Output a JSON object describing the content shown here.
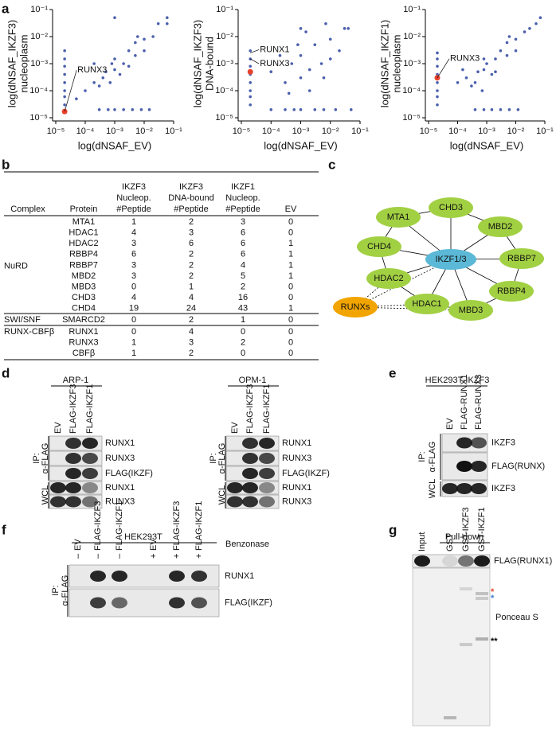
{
  "panel_labels": [
    "a",
    "b",
    "c",
    "d",
    "e",
    "f",
    "g"
  ],
  "chart_data": [
    {
      "type": "scatter",
      "xlabel": "log(dNSAF_EV)",
      "ylabel": [
        "log(dNSAF_IKZF3)",
        "nucleoplasm"
      ],
      "xscale": "log",
      "yscale": "log",
      "xlim": [
        1e-05,
        0.1
      ],
      "ylim": [
        1e-05,
        0.1
      ],
      "xticks": [
        {
          "value": 1e-05,
          "label": "10⁻⁵"
        },
        {
          "value": 0.0001,
          "label": "10⁻⁴"
        },
        {
          "value": 0.001,
          "label": "10⁻³"
        },
        {
          "value": 0.01,
          "label": "10⁻²"
        },
        {
          "value": 0.1,
          "label": "10⁻¹"
        }
      ],
      "yticks": [
        {
          "value": 1e-05,
          "label": "10⁻⁵"
        },
        {
          "value": 0.0001,
          "label": "10⁻⁴"
        },
        {
          "value": 0.001,
          "label": "10⁻³"
        },
        {
          "value": 0.01,
          "label": "10⁻²"
        },
        {
          "value": 0.1,
          "label": "10⁻¹"
        }
      ],
      "color": "#4a5fad",
      "x": [
        2e-05,
        2e-05,
        2e-05,
        2e-05,
        2e-05,
        2e-05,
        2e-05,
        2e-05,
        0.0003,
        0.0006,
        0.001,
        0.002,
        0.004,
        0.008,
        0.015,
        0.0001,
        0.0002,
        0.0003,
        0.0005,
        0.001,
        0.001,
        0.002,
        0.003,
        0.005,
        0.005,
        0.01,
        0.01,
        0.02,
        0.03,
        0.06,
        0.06,
        0.0002,
        0.0004,
        0.0007,
        0.0015,
        0.0008,
        0.006,
        0.001,
        5e-05,
        0.003
      ],
      "y": [
        3e-05,
        6e-05,
        0.0001,
        0.0002,
        0.0004,
        0.0008,
        0.0015,
        0.003,
        2e-05,
        2e-05,
        2e-05,
        2e-05,
        2e-05,
        2e-05,
        2e-05,
        0.0001,
        0.0002,
        0.00015,
        0.0005,
        0.0006,
        0.0015,
        0.001,
        0.003,
        0.002,
        0.006,
        0.008,
        0.003,
        0.01,
        0.03,
        0.03,
        0.05,
        0.001,
        0.0003,
        0.0002,
        0.0004,
        0.001,
        0.01,
        0.05,
        5e-05,
        0.0008
      ],
      "highlight": {
        "color": "#e8412c",
        "x": [
          2e-05
        ],
        "y": [
          1.7e-05
        ]
      },
      "annotations": [
        {
          "text": "RUNX3",
          "x": 2e-05,
          "y": 1.7e-05
        }
      ]
    },
    {
      "type": "scatter",
      "xlabel": "log(dNSAF_EV)",
      "ylabel": [
        "log(dNSAF_IKZF3)",
        "DNA-bound"
      ],
      "xscale": "log",
      "yscale": "log",
      "xlim": [
        1e-05,
        0.1
      ],
      "ylim": [
        1e-05,
        0.1
      ],
      "xticks": [
        {
          "value": 1e-05,
          "label": "10⁻⁵"
        },
        {
          "value": 0.0001,
          "label": "10⁻⁴"
        },
        {
          "value": 0.001,
          "label": "10⁻³"
        },
        {
          "value": 0.01,
          "label": "10⁻²"
        },
        {
          "value": 0.1,
          "label": "10⁻¹"
        }
      ],
      "yticks": [
        {
          "value": 1e-05,
          "label": "10⁻⁵"
        },
        {
          "value": 0.0001,
          "label": "10⁻⁴"
        },
        {
          "value": 0.001,
          "label": "10⁻³"
        },
        {
          "value": 0.01,
          "label": "10⁻²"
        },
        {
          "value": 0.1,
          "label": "10⁻¹"
        }
      ],
      "color": "#4a5fad",
      "x": [
        2e-05,
        2e-05,
        2e-05,
        2e-05,
        2e-05,
        2e-05,
        2e-05,
        2e-05,
        0.0001,
        0.0003,
        0.0006,
        0.001,
        0.003,
        0.006,
        0.015,
        0.05,
        0.0001,
        0.0002,
        0.0003,
        0.0005,
        0.001,
        0.001,
        0.002,
        0.003,
        0.005,
        0.01,
        0.01,
        0.02,
        0.04,
        0.007,
        0.0015,
        0.002,
        0.0008,
        0.0004,
        0.006,
        0.03,
        0.001
      ],
      "y": [
        3e-05,
        6e-05,
        0.0001,
        0.0002,
        0.0004,
        0.0008,
        0.0015,
        0.003,
        2e-05,
        2e-05,
        2e-05,
        2e-05,
        2e-05,
        2e-05,
        2e-05,
        2e-05,
        0.0005,
        0.002,
        0.0002,
        0.001,
        0.0003,
        0.002,
        0.0006,
        0.005,
        0.001,
        0.008,
        0.0015,
        0.003,
        0.02,
        0.03,
        0.015,
        0.0001,
        0.005,
        8e-05,
        0.0003,
        0.02,
        0.02
      ],
      "highlight": {
        "color": "#e8412c",
        "x": [
          2e-05
        ],
        "y": [
          0.0005
        ]
      },
      "annotations": [
        {
          "text": "RUNX1",
          "x": 2e-05,
          "y": 0.0025
        },
        {
          "text": "RUNX3",
          "x": 2e-05,
          "y": 0.0015
        }
      ]
    },
    {
      "type": "scatter",
      "xlabel": "log(dNSAF_EV)",
      "ylabel": [
        "log(dNSAF_IKZF1)",
        "nucleoplasm"
      ],
      "xscale": "log",
      "yscale": "log",
      "xlim": [
        1e-05,
        0.1
      ],
      "ylim": [
        1e-05,
        0.1
      ],
      "xticks": [
        {
          "value": 1e-05,
          "label": "10⁻⁵"
        },
        {
          "value": 0.0001,
          "label": "10⁻⁴"
        },
        {
          "value": 0.001,
          "label": "10⁻³"
        },
        {
          "value": 0.01,
          "label": "10⁻²"
        },
        {
          "value": 0.1,
          "label": "10⁻¹"
        }
      ],
      "yticks": [
        {
          "value": 1e-05,
          "label": "10⁻⁵"
        },
        {
          "value": 0.0001,
          "label": "10⁻⁴"
        },
        {
          "value": 0.001,
          "label": "10⁻³"
        },
        {
          "value": 0.01,
          "label": "10⁻²"
        },
        {
          "value": 0.1,
          "label": "10⁻¹"
        }
      ],
      "color": "#4a5fad",
      "x": [
        2e-05,
        2e-05,
        2e-05,
        2e-05,
        2e-05,
        2e-05,
        2e-05,
        2e-05,
        0.0004,
        0.0008,
        0.0015,
        0.003,
        0.006,
        0.012,
        0.0001,
        0.0002,
        0.0003,
        0.0005,
        0.0008,
        0.001,
        0.002,
        0.003,
        0.005,
        0.005,
        0.01,
        0.01,
        0.02,
        0.03,
        0.05,
        0.07,
        0.00015,
        0.0004,
        0.0007,
        0.0015,
        0.0008,
        0.006,
        0.002
      ],
      "y": [
        3e-05,
        6e-05,
        0.0001,
        0.0002,
        0.0004,
        0.0008,
        0.0015,
        0.0025,
        2e-05,
        2e-05,
        2e-05,
        2e-05,
        2e-05,
        2e-05,
        0.0002,
        0.0003,
        0.00015,
        0.0005,
        0.0006,
        0.001,
        0.0015,
        0.003,
        0.002,
        0.006,
        0.008,
        0.003,
        0.015,
        0.02,
        0.03,
        0.05,
        0.0006,
        0.0002,
        0.0001,
        0.0004,
        0.0015,
        0.01,
        0.0005
      ],
      "highlight": {
        "color": "#e8412c",
        "x": [
          2e-05
        ],
        "y": [
          0.0003
        ]
      },
      "annotations": [
        {
          "text": "RUNX3",
          "x": 2e-05,
          "y": 0.0003
        }
      ]
    }
  ],
  "table": {
    "headers": [
      [
        "Complex"
      ],
      [
        "Protein"
      ],
      [
        "IKZF3",
        "Nucleop.",
        "#Peptide"
      ],
      [
        "IKZF3",
        "DNA-bound",
        "#Peptide"
      ],
      [
        "IKZF1",
        "Nucleop.",
        "#Peptide"
      ],
      [
        "EV"
      ]
    ],
    "groups": [
      {
        "name": "NuRD",
        "rows": [
          [
            "MTA1",
            1,
            2,
            3,
            0
          ],
          [
            "HDAC1",
            4,
            3,
            6,
            0
          ],
          [
            "HDAC2",
            3,
            6,
            6,
            1
          ],
          [
            "RBBP4",
            6,
            2,
            6,
            1
          ],
          [
            "RBBP7",
            3,
            2,
            4,
            1
          ],
          [
            "MBD2",
            3,
            2,
            5,
            1
          ],
          [
            "MBD3",
            0,
            1,
            2,
            0
          ],
          [
            "CHD3",
            4,
            4,
            16,
            0
          ],
          [
            "CHD4",
            19,
            24,
            43,
            1
          ]
        ]
      },
      {
        "name": "SWI/SNF",
        "rows": [
          [
            "SMARCD2",
            0,
            2,
            1,
            0
          ]
        ]
      },
      {
        "name": "RUNX-CBFβ",
        "rows": [
          [
            "RUNX1",
            0,
            4,
            0,
            0
          ],
          [
            "RUNX3",
            1,
            3,
            2,
            0
          ],
          [
            "CBFβ",
            1,
            2,
            0,
            0
          ]
        ]
      }
    ]
  },
  "network": {
    "center": {
      "label": "IKZF1/3",
      "color": "#5bb8d6"
    },
    "nodes": [
      "MTA1",
      "CHD3",
      "MBD2",
      "RBBP7",
      "RBBP4",
      "MBD3",
      "HDAC1",
      "HDAC2",
      "CHD4"
    ],
    "node_color": "#a2d043",
    "runx": {
      "label": "RUNXs",
      "color": "#f2a500"
    }
  },
  "blots": {
    "d": [
      {
        "cell_line": "ARP-1",
        "lanes": [
          "EV",
          "FLAG-IKZF3",
          "FLAG-IKZF1"
        ],
        "rows": [
          "RUNX1",
          "RUNX3",
          "FLAG(IKZF)",
          "RUNX1",
          "RUNX3"
        ],
        "ip_label": "IP:",
        "ip_antibody": "α-FLAG",
        "wcl_label": "WCL"
      },
      {
        "cell_line": "OPM-1",
        "lanes": [
          "EV",
          "FLAG-IKZF3",
          "FLAG-IKZF1"
        ],
        "rows": [
          "RUNX1",
          "RUNX3",
          "FLAG(IKZF)",
          "RUNX1",
          "RUNX3"
        ],
        "ip_label": "IP:",
        "ip_antibody": "α-FLAG",
        "wcl_label": "WCL"
      }
    ],
    "e": {
      "cell_line": "HEK293T-IKZF3",
      "lanes": [
        "EV",
        "FLAG-RUNX1",
        "FLAG-RUNX3"
      ],
      "rows": [
        "IKZF3",
        "FLAG(RUNX)",
        "IKZF3"
      ],
      "ip_label": "IP:",
      "ip_antibody": "α-FLAG",
      "wcl_label": "WCL"
    },
    "f": {
      "cell_line": "HEK293T",
      "benzonase": [
        "–",
        "–",
        "–",
        "+",
        "+",
        "+"
      ],
      "lanes": [
        "EV",
        "FLAG-IKZF3",
        "FLAG-IKZF1",
        "EV",
        "FLAG-IKZF3",
        "FLAG-IKZF1"
      ],
      "treatment": "Benzonase",
      "rows": [
        "RUNX1",
        "FLAG(IKZF)"
      ],
      "ip_label": "IP:",
      "ip_antibody": "α-FLAG"
    },
    "g": {
      "header": "Pull-down",
      "lanes": [
        "Input",
        "GST",
        "GST-IKZF3",
        "GST-IKZF1"
      ],
      "rows": [
        "FLAG(RUNX1)",
        "Ponceau S"
      ],
      "markers": [
        {
          "text": "*",
          "color": "#e8412c"
        },
        {
          "text": "*",
          "color": "#3a7fd5"
        },
        {
          "text": "**",
          "color": "#000000"
        }
      ]
    }
  }
}
